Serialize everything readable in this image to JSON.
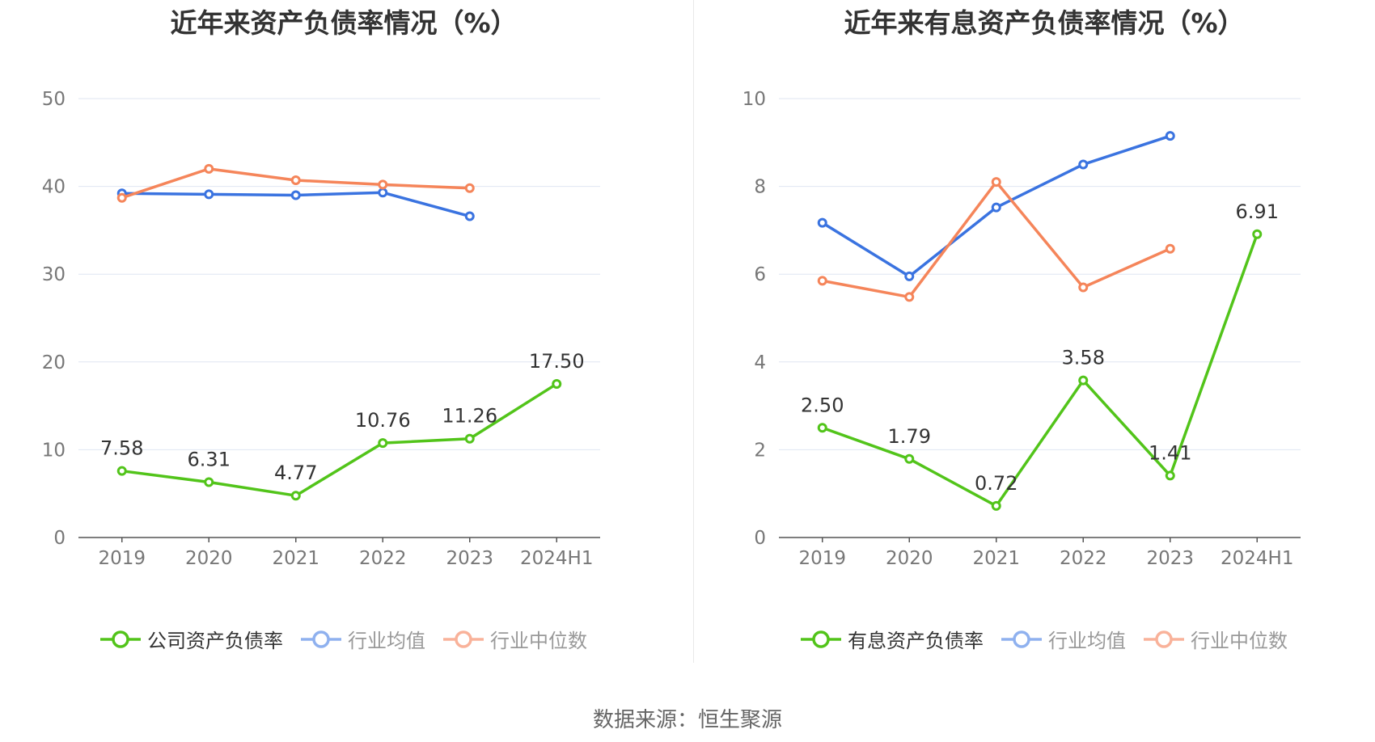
{
  "source": "数据来源：恒生聚源",
  "chart_data": [
    {
      "type": "line",
      "title": "近年来资产负债率情况（%）",
      "categories": [
        "2019",
        "2020",
        "2021",
        "2022",
        "2023",
        "2024H1"
      ],
      "ylim": [
        0,
        50
      ],
      "yticks": [
        0,
        10,
        20,
        30,
        40,
        50
      ],
      "grid": true,
      "legend_position": "bottom",
      "series": [
        {
          "name": "公司资产负债率",
          "color": "#52c41a",
          "values": [
            7.58,
            6.31,
            4.77,
            10.76,
            11.26,
            17.5
          ],
          "labels": [
            "7.58",
            "6.31",
            "4.77",
            "10.76",
            "11.26",
            "17.50"
          ]
        },
        {
          "name": "行业均值",
          "color": "#3a73e0",
          "values": [
            39.2,
            39.1,
            39.0,
            39.3,
            36.6,
            null
          ]
        },
        {
          "name": "行业中位数",
          "color": "#f5855a",
          "values": [
            38.7,
            42.0,
            40.7,
            40.2,
            39.8,
            null
          ]
        }
      ]
    },
    {
      "type": "line",
      "title": "近年来有息资产负债率情况（%）",
      "categories": [
        "2019",
        "2020",
        "2021",
        "2022",
        "2023",
        "2024H1"
      ],
      "ylim": [
        0,
        10
      ],
      "yticks": [
        0,
        2,
        4,
        6,
        8,
        10
      ],
      "grid": true,
      "legend_position": "bottom",
      "series": [
        {
          "name": "有息资产负债率",
          "color": "#52c41a",
          "values": [
            2.5,
            1.79,
            0.72,
            3.58,
            1.41,
            6.91
          ],
          "labels": [
            "2.50",
            "1.79",
            "0.72",
            "3.58",
            "1.41",
            "6.91"
          ]
        },
        {
          "name": "行业均值",
          "color": "#3a73e0",
          "values": [
            7.17,
            5.95,
            7.52,
            8.5,
            9.15,
            null
          ]
        },
        {
          "name": "行业中位数",
          "color": "#f5855a",
          "values": [
            5.85,
            5.48,
            8.1,
            5.7,
            6.58,
            null
          ]
        }
      ]
    }
  ]
}
